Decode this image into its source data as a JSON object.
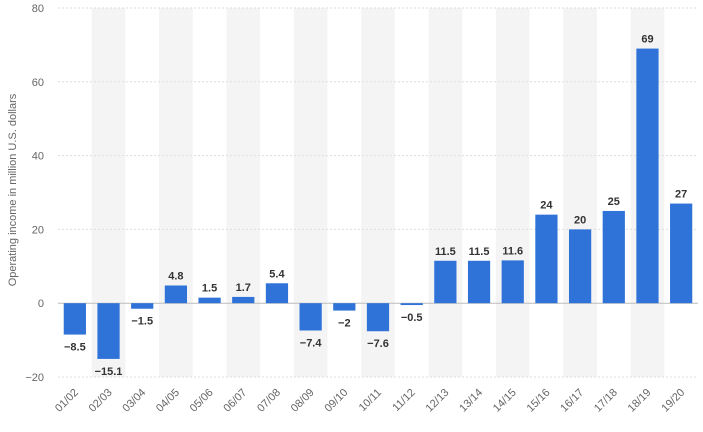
{
  "chart_data": {
    "type": "bar",
    "categories": [
      "01/02",
      "02/03",
      "03/04",
      "04/05",
      "05/06",
      "06/07",
      "07/08",
      "08/09",
      "09/10",
      "10/11",
      "11/12",
      "12/13",
      "13/14",
      "14/15",
      "15/16",
      "16/17",
      "17/18",
      "18/19",
      "19/20"
    ],
    "values": [
      -8.5,
      -15.1,
      -1.5,
      4.8,
      1.5,
      1.7,
      5.4,
      -7.4,
      -2,
      -7.6,
      -0.5,
      11.5,
      11.5,
      11.6,
      24,
      20,
      25,
      69,
      27
    ],
    "value_labels": [
      "−8.5",
      "−15.1",
      "−1.5",
      "4.8",
      "1.5",
      "1.7",
      "5.4",
      "−7.4",
      "−2",
      "−7.6",
      "−0.5",
      "11.5",
      "11.5",
      "11.6",
      "24",
      "20",
      "25",
      "69",
      "27"
    ],
    "title": "",
    "xlabel": "",
    "ylabel": "Operating income in million U.S. dollars",
    "ylim": [
      -20,
      80
    ],
    "yticks": [
      -20,
      0,
      20,
      40,
      60,
      80
    ],
    "ytick_labels": [
      "−20",
      "0",
      "20",
      "40",
      "60",
      "80"
    ],
    "grid": true,
    "legend": "none",
    "colors": {
      "bar": "#2f73d8",
      "band": "#f4f4f4",
      "grid": "#dddddd",
      "zero_line": "#bbbbbb"
    }
  }
}
